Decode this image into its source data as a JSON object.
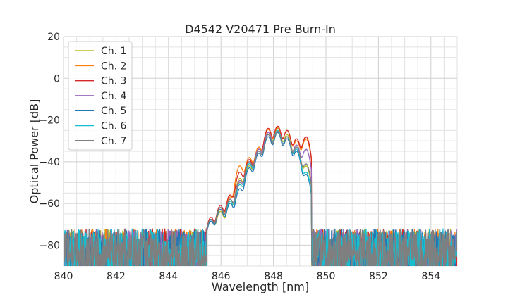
{
  "chart_data": {
    "type": "line",
    "title": "D4542 V20471 Pre Burn-In",
    "xlabel": "Wavelength [nm]",
    "ylabel": "Optical Power [dB]",
    "xlim": [
      840,
      855
    ],
    "ylim": [
      -90,
      20
    ],
    "x_ticks": [
      840,
      842,
      844,
      846,
      848,
      850,
      852,
      854
    ],
    "y_ticks": [
      20,
      0,
      -20,
      -40,
      -60,
      -80
    ],
    "x_tick_labels": [
      "840",
      "842",
      "844",
      "846",
      "848",
      "850",
      "852",
      "854"
    ],
    "y_tick_labels": [
      "20",
      "0",
      "−20",
      "−40",
      "−60",
      "−80"
    ],
    "grid": true,
    "legend_position": "top-left",
    "noise_floor_db": -80,
    "series": [
      {
        "name": "Ch. 1",
        "color": "#bcbd22",
        "peaks": [
          {
            "x": 845.62,
            "y": -68
          },
          {
            "x": 845.98,
            "y": -64
          },
          {
            "x": 846.35,
            "y": -60
          },
          {
            "x": 846.72,
            "y": -48
          },
          {
            "x": 847.08,
            "y": -42
          },
          {
            "x": 847.44,
            "y": -34
          },
          {
            "x": 847.8,
            "y": -26
          },
          {
            "x": 848.16,
            "y": -24
          },
          {
            "x": 848.52,
            "y": -27
          },
          {
            "x": 848.88,
            "y": -33
          },
          {
            "x": 849.24,
            "y": -42
          }
        ]
      },
      {
        "name": "Ch. 2",
        "color": "#ff7f0e",
        "peaks": [
          {
            "x": 845.62,
            "y": -68
          },
          {
            "x": 845.98,
            "y": -62
          },
          {
            "x": 846.35,
            "y": -57
          },
          {
            "x": 846.72,
            "y": -42
          },
          {
            "x": 847.08,
            "y": -38
          },
          {
            "x": 847.44,
            "y": -33
          },
          {
            "x": 847.8,
            "y": -24.5
          },
          {
            "x": 848.16,
            "y": -23.5
          },
          {
            "x": 848.52,
            "y": -25
          },
          {
            "x": 848.88,
            "y": -30
          },
          {
            "x": 849.24,
            "y": -29
          }
        ]
      },
      {
        "name": "Ch. 3",
        "color": "#d62728",
        "peaks": [
          {
            "x": 845.62,
            "y": -67
          },
          {
            "x": 845.98,
            "y": -61
          },
          {
            "x": 846.35,
            "y": -56
          },
          {
            "x": 846.72,
            "y": -45
          },
          {
            "x": 847.08,
            "y": -39
          },
          {
            "x": 847.44,
            "y": -34
          },
          {
            "x": 847.8,
            "y": -24
          },
          {
            "x": 848.16,
            "y": -23
          },
          {
            "x": 848.52,
            "y": -25
          },
          {
            "x": 848.88,
            "y": -29
          },
          {
            "x": 849.24,
            "y": -28
          }
        ]
      },
      {
        "name": "Ch. 4",
        "color": "#9467bd",
        "peaks": [
          {
            "x": 845.62,
            "y": -68
          },
          {
            "x": 845.98,
            "y": -62
          },
          {
            "x": 846.35,
            "y": -58
          },
          {
            "x": 846.72,
            "y": -49
          },
          {
            "x": 847.08,
            "y": -40
          },
          {
            "x": 847.44,
            "y": -34
          },
          {
            "x": 847.8,
            "y": -26
          },
          {
            "x": 848.16,
            "y": -25
          },
          {
            "x": 848.52,
            "y": -28
          },
          {
            "x": 848.88,
            "y": -32
          },
          {
            "x": 849.24,
            "y": -34
          }
        ]
      },
      {
        "name": "Ch. 5",
        "color": "#1f77b4",
        "peaks": [
          {
            "x": 845.62,
            "y": -69
          },
          {
            "x": 845.98,
            "y": -63
          },
          {
            "x": 846.35,
            "y": -60
          },
          {
            "x": 846.72,
            "y": -53
          },
          {
            "x": 847.08,
            "y": -43
          },
          {
            "x": 847.44,
            "y": -36
          },
          {
            "x": 847.8,
            "y": -28
          },
          {
            "x": 848.16,
            "y": -26
          },
          {
            "x": 848.52,
            "y": -29
          },
          {
            "x": 848.88,
            "y": -35
          },
          {
            "x": 849.24,
            "y": -46
          }
        ]
      },
      {
        "name": "Ch. 6",
        "color": "#17becf",
        "peaks": [
          {
            "x": 845.62,
            "y": -68
          },
          {
            "x": 845.98,
            "y": -62
          },
          {
            "x": 846.35,
            "y": -59
          },
          {
            "x": 846.72,
            "y": -51
          },
          {
            "x": 847.08,
            "y": -41
          },
          {
            "x": 847.44,
            "y": -35
          },
          {
            "x": 847.8,
            "y": -27
          },
          {
            "x": 848.16,
            "y": -25
          },
          {
            "x": 848.52,
            "y": -28
          },
          {
            "x": 848.88,
            "y": -34
          },
          {
            "x": 849.24,
            "y": -45
          }
        ]
      },
      {
        "name": "Ch. 7",
        "color": "#7f7f7f",
        "peaks": [
          {
            "x": 845.62,
            "y": -68
          },
          {
            "x": 845.98,
            "y": -62
          },
          {
            "x": 846.35,
            "y": -58
          },
          {
            "x": 846.72,
            "y": -50
          },
          {
            "x": 847.08,
            "y": -40
          },
          {
            "x": 847.44,
            "y": -35
          },
          {
            "x": 847.8,
            "y": -27
          },
          {
            "x": 848.16,
            "y": -25.5
          },
          {
            "x": 848.52,
            "y": -28
          },
          {
            "x": 848.88,
            "y": -33
          },
          {
            "x": 849.24,
            "y": -41
          }
        ]
      }
    ]
  }
}
